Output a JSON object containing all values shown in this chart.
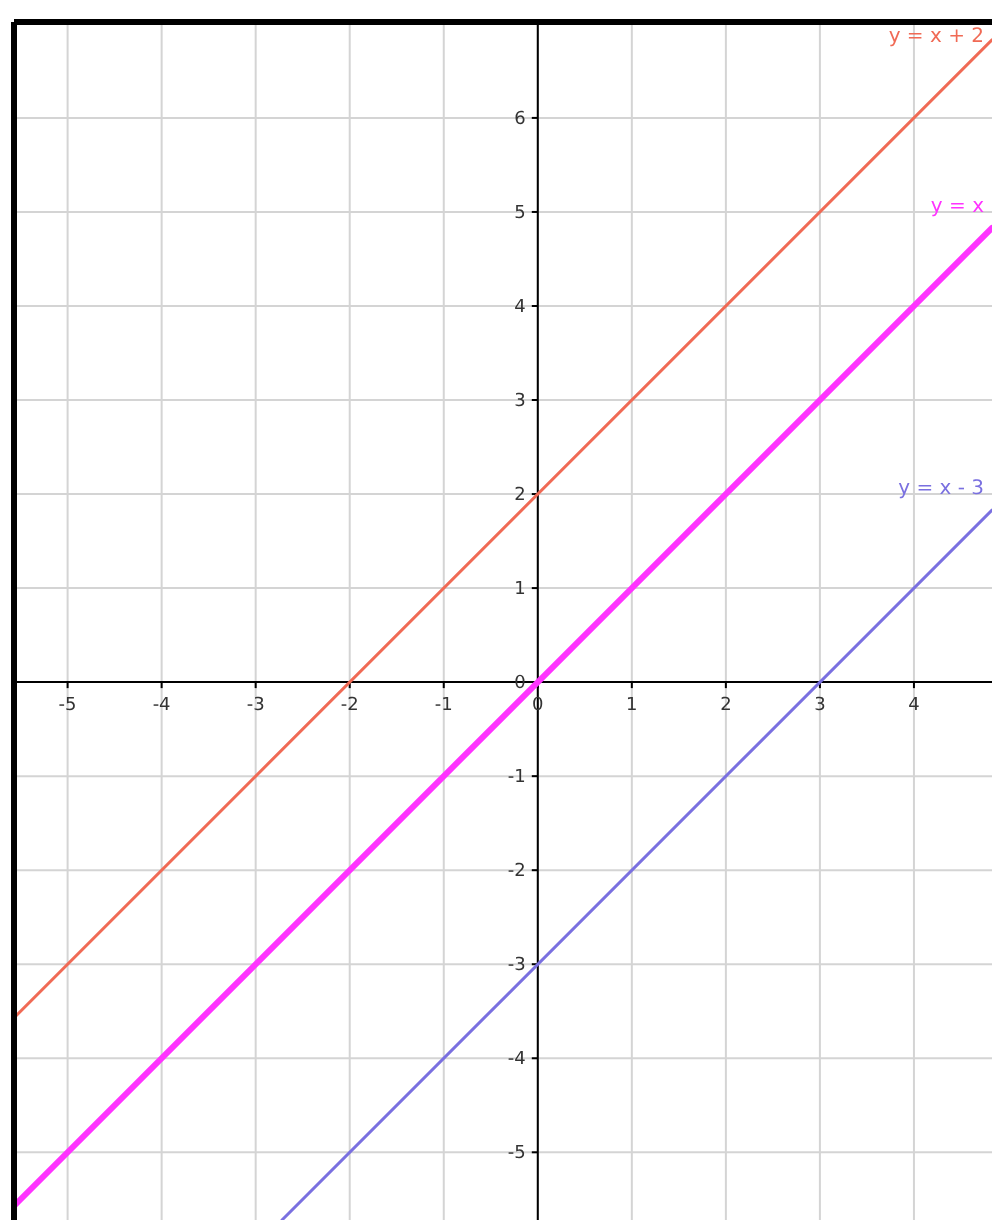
{
  "chart_data": {
    "type": "line",
    "xlim": [
      -5.57,
      4.83
    ],
    "ylim": [
      -5.72,
      7.02
    ],
    "xticks": [
      -5,
      -4,
      -3,
      -2,
      -1,
      0,
      1,
      2,
      3,
      4
    ],
    "yticks": [
      -5,
      -4,
      -3,
      -2,
      -1,
      0,
      1,
      2,
      3,
      4,
      5,
      6
    ],
    "grid": true,
    "marker": "none",
    "line_style": "solid",
    "series": [
      {
        "name": "y = x + 2",
        "color": "#f06a55",
        "x": [
          -5.57,
          4.83
        ],
        "values": [
          -3.57,
          6.83
        ]
      },
      {
        "name": "y = x",
        "color": "#ff33ff",
        "x": [
          -5.57,
          4.83
        ],
        "values": [
          -5.57,
          4.83
        ]
      },
      {
        "name": "y = x - 3",
        "color": "#7a70e0",
        "x": [
          -2.72,
          4.83
        ],
        "values": [
          -5.72,
          1.83
        ]
      }
    ]
  }
}
